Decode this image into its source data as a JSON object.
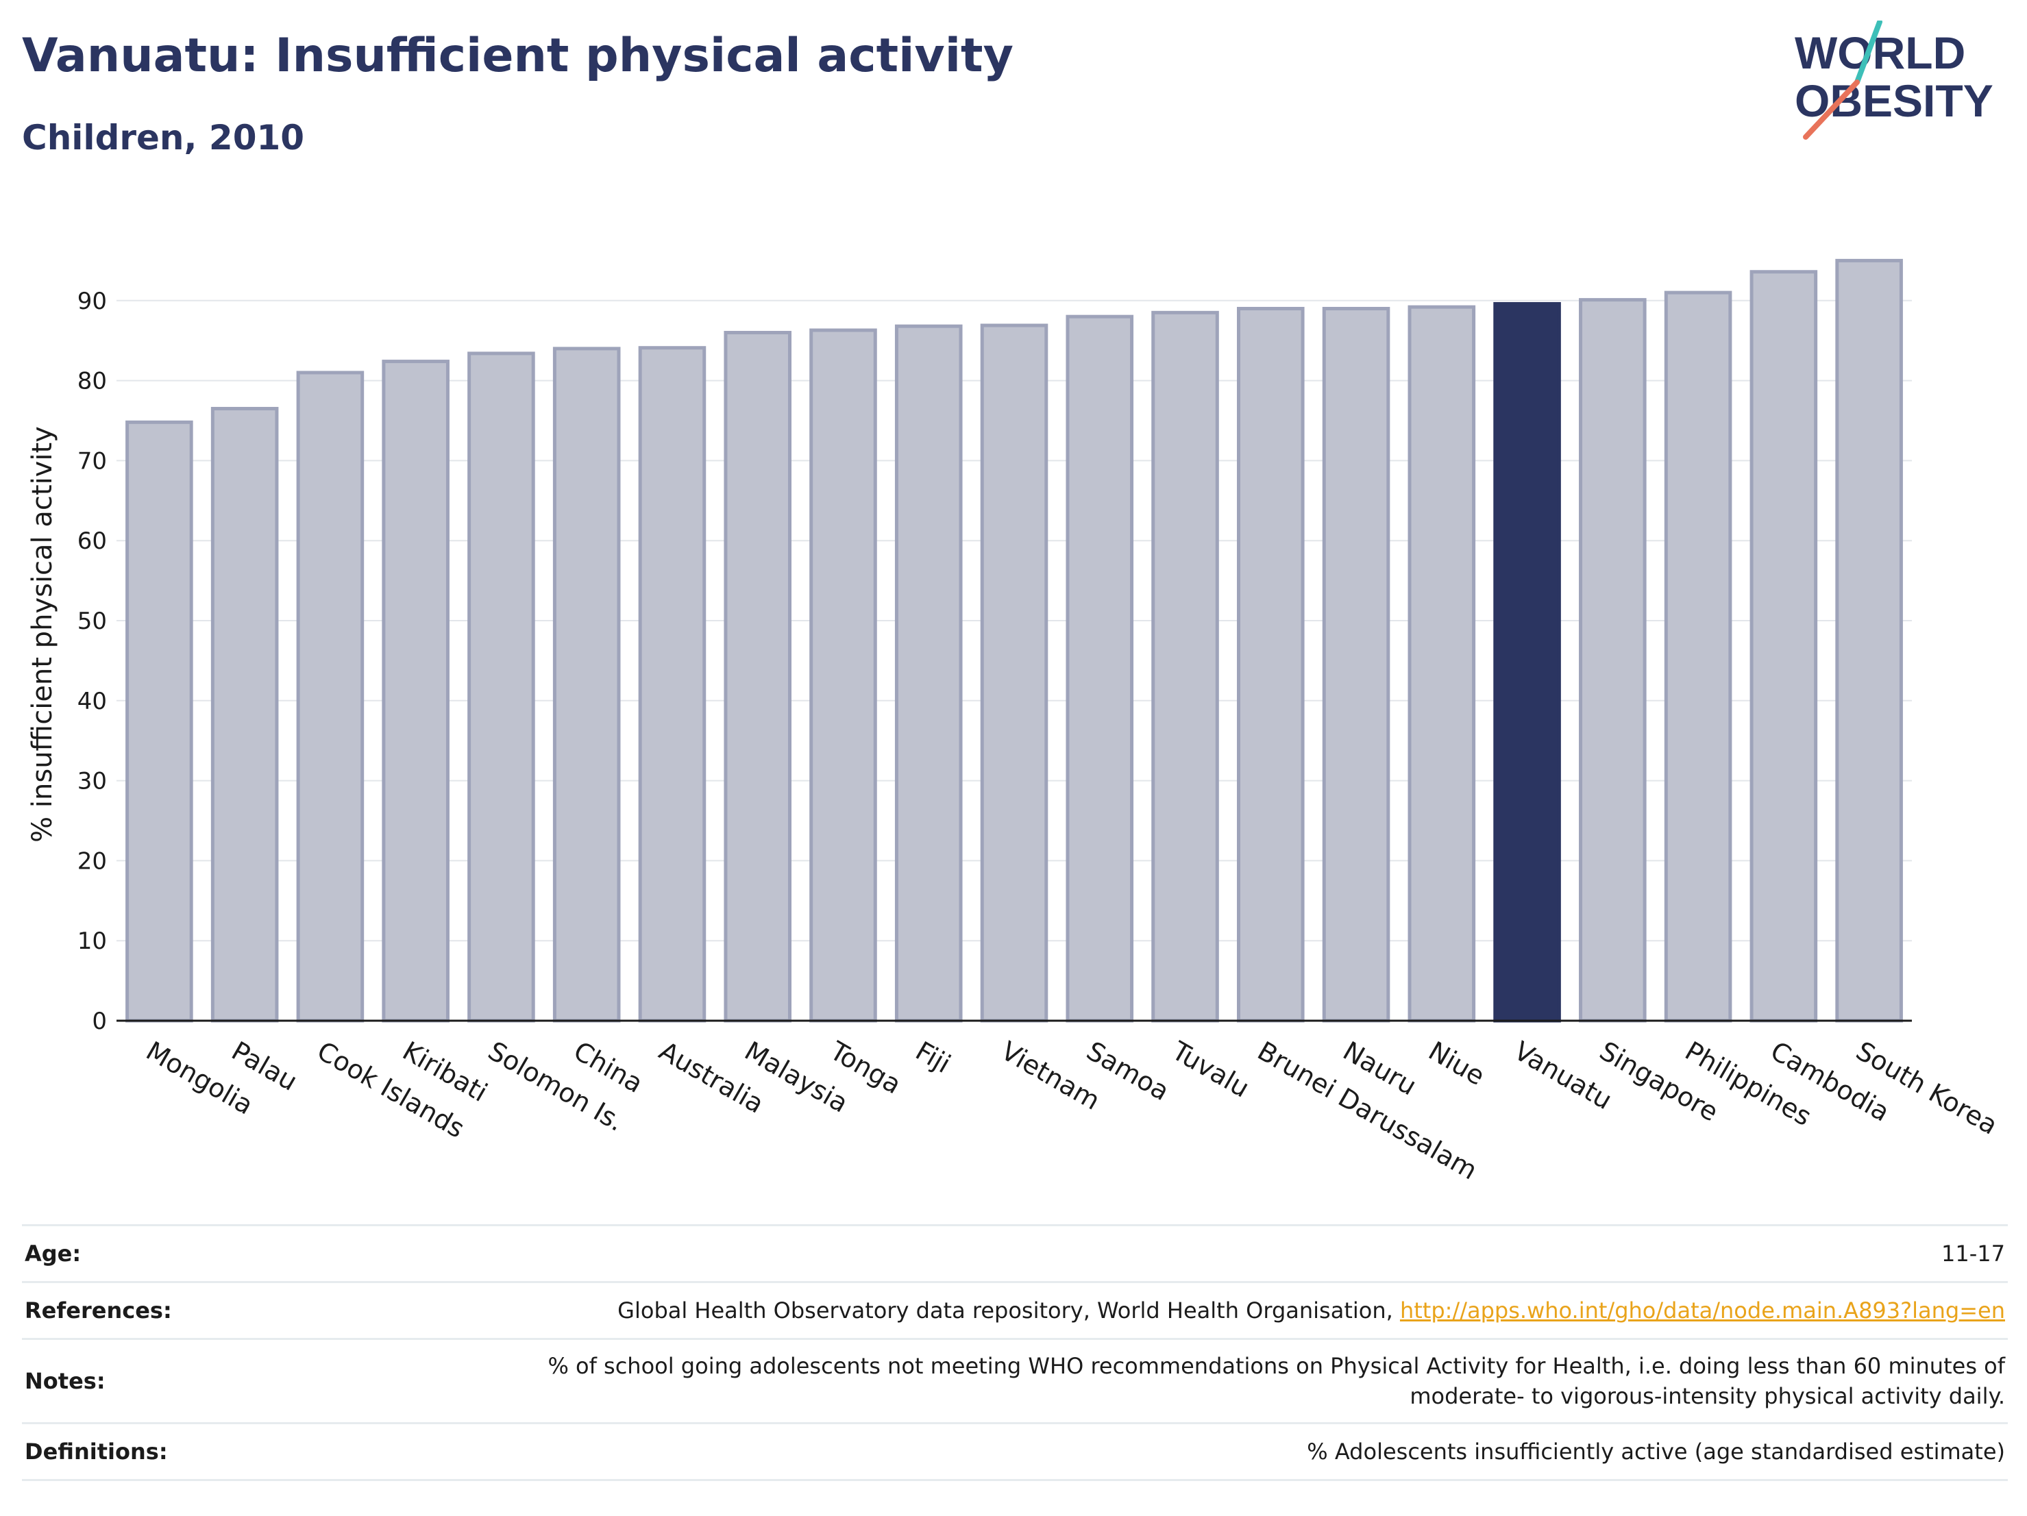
{
  "header": {
    "title": "Vanuatu: Insufficient physical activity",
    "subtitle": "Children, 2010"
  },
  "logo": {
    "line1": "WORLD",
    "line2": "OBESITY",
    "text_color": "#2b3561",
    "slash_colors": [
      "#3dbfb8",
      "#e8735a"
    ]
  },
  "chart_data": {
    "type": "bar",
    "categories": [
      "Mongolia",
      "Palau",
      "Cook Islands",
      "Kiribati",
      "Solomon Is.",
      "China",
      "Australia",
      "Malaysia",
      "Tonga",
      "Fiji",
      "Vietnam",
      "Samoa",
      "Tuvalu",
      "Brunei Darussalam",
      "Nauru",
      "Niue",
      "Vanuatu",
      "Singapore",
      "Philippines",
      "Cambodia",
      "South Korea"
    ],
    "values": [
      74.8,
      76.5,
      81.0,
      82.4,
      83.4,
      84.0,
      84.1,
      86.0,
      86.3,
      86.8,
      86.9,
      88.0,
      88.5,
      89.0,
      89.0,
      89.2,
      89.6,
      90.1,
      91.0,
      93.6,
      95.0
    ],
    "highlight": "Vanuatu",
    "ylabel": "% insufficient physical activity",
    "xlabel": "",
    "ylim": [
      0,
      100
    ],
    "yticks": [
      0,
      10,
      20,
      30,
      40,
      50,
      60,
      70,
      80,
      90
    ],
    "grid": true,
    "bar_color": "#bfc2cf",
    "bar_edge_color": "#9ea3ba",
    "highlight_color": "#2b3561"
  },
  "info": {
    "age_label": "Age:",
    "age_value": "11-17",
    "references_label": "References:",
    "references_text": "Global Health Observatory data repository, World Health Organisation, ",
    "references_link": "http://apps.who.int/gho/data/node.main.A893?lang=en",
    "notes_label": "Notes:",
    "notes_line1": "% of school going adolescents not meeting WHO recommendations on Physical Activity for Health, i.e. doing less than 60 minutes of",
    "notes_line2": "moderate- to vigorous-intensity physical activity daily.",
    "definitions_label": "Definitions:",
    "definitions_value": "% Adolescents insufficiently active (age standardised estimate)"
  }
}
